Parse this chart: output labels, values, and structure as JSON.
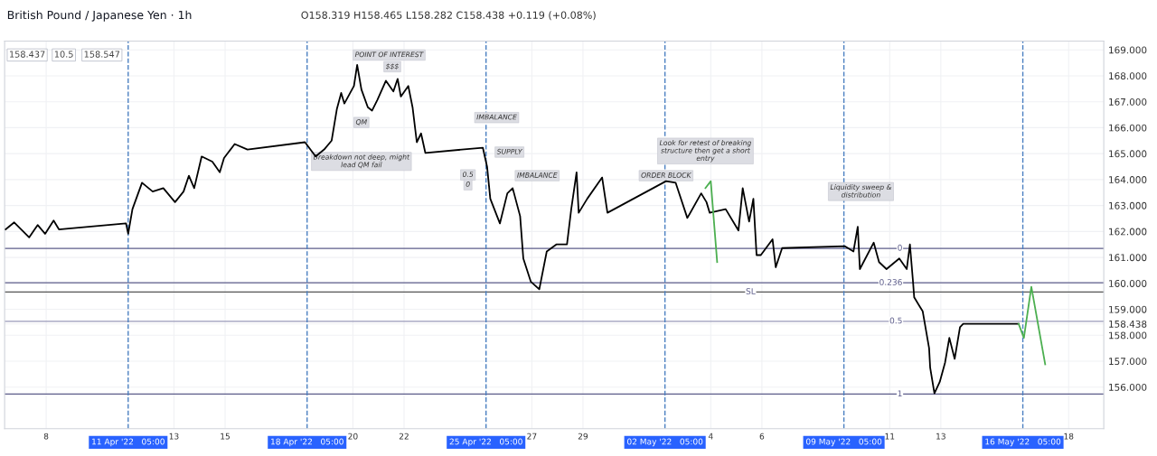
{
  "chart_data": {
    "type": "line",
    "title": "British Pound / Japanese Yen · 1h",
    "subtitle": "O158.319 H158.465 L158.282 C158.438 +0.119 (+0.08%)",
    "annotations": [
      "158.437",
      "10.5",
      "158.547",
      "POINT OF INTEREST",
      "$$$",
      "QM",
      "Breakdown not deep, might\nlead QM fail",
      "IMBALANCE",
      "SUPPLY",
      "0.5",
      "0",
      "IMBALANCE",
      "ORDER BLOCK",
      "Look for retest of breaking\nstructure then get a short\nentry",
      "Liquidity sweep &\ndistribution",
      {
        "text": "0",
        "x": "2022-05-11T12:00",
        "y": 161.35
      },
      {
        "text": "0.236",
        "x": "2022-05-11T12:00",
        "y": 160.02
      },
      {
        "text": "SL",
        "x": "2022-05-05T18:00",
        "y": 159.67
      },
      {
        "text": "0.5",
        "x": "2022-05-11T12:00",
        "y": 158.54
      },
      {
        "text": "1",
        "x": "2022-05-11T12:00",
        "y": 155.73
      }
    ],
    "x": [
      "2022-04-06T10:00",
      "2022-04-06T18:00",
      "2022-04-07T08:00",
      "2022-04-07T16:00",
      "2022-04-07T23:00",
      "2022-04-08T07:00",
      "2022-04-08T12:00",
      "2022-04-08T21:00",
      "2022-04-11T03:00",
      "2022-04-11T05:00",
      "2022-04-11T09:00",
      "2022-04-11T18:00",
      "2022-04-12T04:00",
      "2022-04-12T14:00",
      "2022-04-13T01:00",
      "2022-04-13T09:00",
      "2022-04-13T14:00",
      "2022-04-13T19:00",
      "2022-04-14T02:00",
      "2022-04-14T12:00",
      "2022-04-14T19:00",
      "2022-04-14T23:00",
      "2022-04-15T09:00",
      "2022-04-15T21:00",
      "2022-04-18T03:00",
      "2022-04-18T13:00",
      "2022-04-18T21:00",
      "2022-04-19T04:00",
      "2022-04-19T09:00",
      "2022-04-19T13:00",
      "2022-04-19T16:00",
      "2022-04-20T01:00",
      "2022-04-20T04:00",
      "2022-04-20T08:00",
      "2022-04-20T14:00",
      "2022-04-20T18:00",
      "2022-04-20T23:00",
      "2022-04-21T07:00",
      "2022-04-21T14:00",
      "2022-04-21T18:00",
      "2022-04-21T21:00",
      "2022-04-22T04:00",
      "2022-04-22T08:00",
      "2022-04-22T12:00",
      "2022-04-22T16:00",
      "2022-04-22T20:00",
      "2022-04-25T02:00",
      "2022-04-25T06:00",
      "2022-04-25T09:00",
      "2022-04-25T18:00",
      "2022-04-26T01:00",
      "2022-04-26T06:00",
      "2022-04-26T13:00",
      "2022-04-26T16:00",
      "2022-04-26T23:00",
      "2022-04-27T07:00",
      "2022-04-27T14:00",
      "2022-04-27T23:00",
      "2022-04-28T09:00",
      "2022-04-28T13:00",
      "2022-04-28T18:00",
      "2022-04-28T20:00",
      "2022-04-29T04:00",
      "2022-04-29T18:00",
      "2022-04-29T23:00",
      "2022-05-02T06:00",
      "2022-05-02T15:00",
      "2022-05-03T02:00",
      "2022-05-03T15:00",
      "2022-05-03T20:00",
      "2022-05-03T23:00",
      "2022-05-04T14:00",
      "2022-05-05T02:00",
      "2022-05-05T06:00",
      "2022-05-05T12:00",
      "2022-05-05T16:00",
      "2022-05-05T19:00",
      "2022-05-05T23:00",
      "2022-05-06T10:00",
      "2022-05-06T13:00",
      "2022-05-06T19:00",
      "2022-05-09T06:00",
      "2022-05-09T14:00",
      "2022-05-09T18:00",
      "2022-05-09T20:00",
      "2022-05-10T09:00",
      "2022-05-10T14:00",
      "2022-05-10T21:00",
      "2022-05-11T09:00",
      "2022-05-11T16:00",
      "2022-05-11T19:00",
      "2022-05-11T22:00",
      "2022-05-11T23:00",
      "2022-05-12T07:00",
      "2022-05-12T13:00",
      "2022-05-12T14:00",
      "2022-05-12T18:00",
      "2022-05-12T23:00",
      "2022-05-13T04:00",
      "2022-05-13T08:00",
      "2022-05-13T13:00",
      "2022-05-13T18:00",
      "2022-05-13T21:00",
      "2022-05-16T01:00"
    ],
    "series": [
      {
        "color": "#000000",
        "values": [
          162.08,
          162.35,
          161.77,
          162.25,
          161.91,
          162.42,
          162.08,
          162.11,
          162.31,
          161.91,
          162.86,
          163.88,
          163.54,
          163.67,
          163.13,
          163.54,
          164.15,
          163.67,
          164.89,
          164.69,
          164.28,
          164.83,
          165.37,
          165.16,
          165.44,
          164.89,
          165.16,
          165.5,
          166.73,
          167.34,
          166.93,
          167.61,
          168.42,
          167.47,
          166.79,
          166.66,
          167.07,
          167.81,
          167.4,
          167.88,
          167.2,
          167.61,
          166.79,
          165.44,
          165.78,
          165.03,
          165.23,
          164.49,
          163.26,
          162.31,
          163.47,
          163.67,
          162.59,
          160.96,
          160.07,
          159.77,
          161.23,
          161.5,
          161.5,
          162.86,
          164.28,
          162.72,
          163.26,
          164.08,
          162.72,
          163.94,
          163.88,
          162.52,
          163.47,
          163.13,
          162.72,
          162.86,
          162.04,
          163.67,
          162.38,
          163.26,
          161.09,
          161.09,
          161.7,
          160.62,
          161.36,
          161.43,
          161.23,
          162.18,
          160.55,
          161.57,
          160.82,
          160.55,
          160.96,
          160.55,
          161.5,
          160.01,
          159.46,
          158.92,
          157.5,
          156.75,
          155.76,
          156.2,
          156.95,
          157.9,
          157.09,
          158.31,
          158.44,
          158.44
        ]
      },
      {
        "color": "#4caf50",
        "x": [
          "2022-05-03T19:00",
          "2022-05-04T00:00",
          "2022-05-04T06:00"
        ],
        "values": [
          163.67,
          163.94,
          160.82
        ]
      },
      {
        "color": "#4caf50",
        "x": [
          "2022-05-16T01:00",
          "2022-05-16T06:00",
          "2022-05-16T13:00",
          "2022-05-17T02:00"
        ],
        "values": [
          158.44,
          157.9,
          159.87,
          156.88
        ]
      }
    ],
    "xlim": [
      "2022-04-06T09:00",
      "2022-05-19T09:00"
    ],
    "xticks": [
      {
        "value": "2022-04-08",
        "label": "8"
      },
      {
        "value": "2022-04-13",
        "label": "13"
      },
      {
        "value": "2022-04-15",
        "label": "15"
      },
      {
        "value": "2022-04-20",
        "label": "20"
      },
      {
        "value": "2022-04-22",
        "label": "22"
      },
      {
        "value": "2022-04-27",
        "label": "27"
      },
      {
        "value": "2022-04-29",
        "label": "29"
      },
      {
        "value": "2022-05-04",
        "label": "4"
      },
      {
        "value": "2022-05-06",
        "label": "6"
      },
      {
        "value": "2022-05-11",
        "label": "11"
      },
      {
        "value": "2022-05-13",
        "label": "13"
      },
      {
        "value": "2022-05-18",
        "label": "18"
      }
    ],
    "ylim": [
      154.4,
      169.34
    ],
    "yticks": [
      {
        "value": 156,
        "label": "156.000"
      },
      {
        "value": 157,
        "label": "157.000"
      },
      {
        "value": 158,
        "label": "158.000"
      },
      {
        "value": 158.438,
        "label": "158.438"
      },
      {
        "value": 159,
        "label": "159.000"
      },
      {
        "value": 160,
        "label": "160.000"
      },
      {
        "value": 161,
        "label": "161.000"
      },
      {
        "value": 162,
        "label": "162.000"
      },
      {
        "value": 163,
        "label": "163.000"
      },
      {
        "value": 164,
        "label": "164.000"
      },
      {
        "value": 165,
        "label": "165.000"
      },
      {
        "value": 166,
        "label": "166.000"
      },
      {
        "value": 167,
        "label": "167.000"
      },
      {
        "value": 168,
        "label": "168.000"
      },
      {
        "value": 169,
        "label": "169.000"
      }
    ],
    "ref_lines": [
      {
        "axis": "y",
        "value": 161.35,
        "color": "#5c5c8a"
      },
      {
        "axis": "y",
        "value": 160.02,
        "color": "#5c5c8a"
      },
      {
        "axis": "y",
        "value": 159.67,
        "color": "#555555"
      },
      {
        "axis": "y",
        "value": 158.54,
        "color": "#9a9ab8"
      },
      {
        "axis": "y",
        "value": 155.73,
        "color": "#5c5c8a"
      },
      {
        "axis": "x",
        "value": "2022-04-11T05:00",
        "label": "11 Apr '22   05:00",
        "color": "#4a7fc1",
        "line_style": "dashed"
      },
      {
        "axis": "x",
        "value": "2022-04-18T05:00",
        "label": "18 Apr '22   05:00",
        "color": "#4a7fc1",
        "line_style": "dashed"
      },
      {
        "axis": "x",
        "value": "2022-04-25T05:00",
        "label": "25 Apr '22   05:00",
        "color": "#4a7fc1",
        "line_style": "dashed"
      },
      {
        "axis": "x",
        "value": "2022-05-02T05:00",
        "label": "02 May '22   05:00",
        "color": "#4a7fc1",
        "line_style": "dashed"
      },
      {
        "axis": "x",
        "value": "2022-05-09T05:00",
        "label": "09 May '22   05:00",
        "color": "#4a7fc1",
        "line_style": "dashed"
      },
      {
        "axis": "x",
        "value": "2022-05-16T05:00",
        "label": "16 May '22   05:00",
        "color": "#4a7fc1",
        "line_style": "dashed"
      }
    ],
    "grid": true,
    "marker": "none",
    "line_style": "solid"
  }
}
